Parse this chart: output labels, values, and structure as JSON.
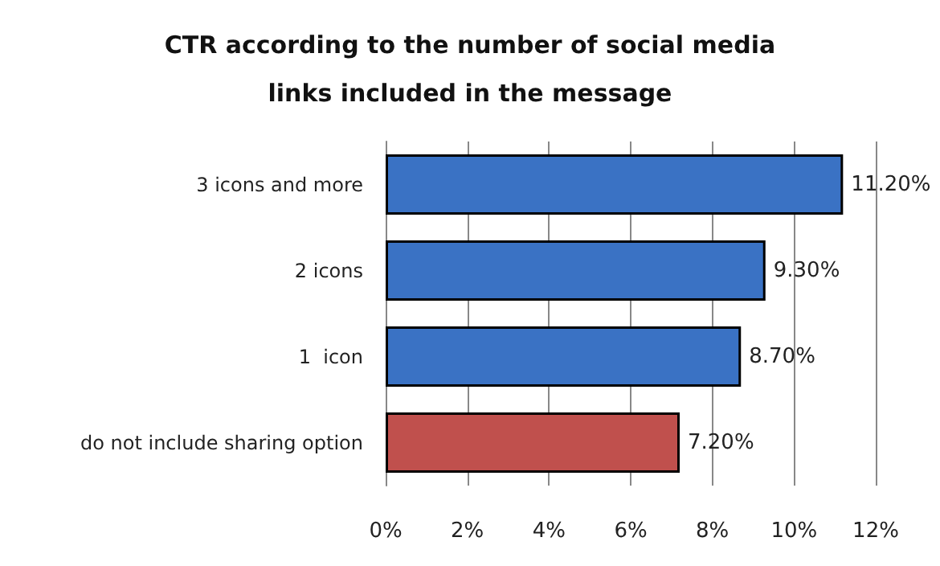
{
  "chart_data": {
    "type": "bar",
    "orientation": "horizontal",
    "title": "CTR according to the number of social media\nlinks included in the message",
    "categories": [
      "3 icons and more",
      "2 icons",
      "1  icon",
      "do not include sharing option"
    ],
    "values": [
      11.2,
      9.3,
      8.7,
      7.2
    ],
    "colors": [
      "#3a72c4",
      "#3a72c4",
      "#3a72c4",
      "#c0504d"
    ],
    "value_labels": [
      "11.20%",
      "9.30%",
      "8.70%",
      "7.20%"
    ],
    "xlim": [
      0,
      12
    ],
    "xticks": [
      {
        "value": 0,
        "label": "0%"
      },
      {
        "value": 2,
        "label": "2%"
      },
      {
        "value": 4,
        "label": "4%"
      },
      {
        "value": 6,
        "label": "6%"
      },
      {
        "value": 8,
        "label": "8%"
      },
      {
        "value": 10,
        "label": "10%"
      },
      {
        "value": 12,
        "label": "12%"
      }
    ],
    "grid": "x"
  }
}
